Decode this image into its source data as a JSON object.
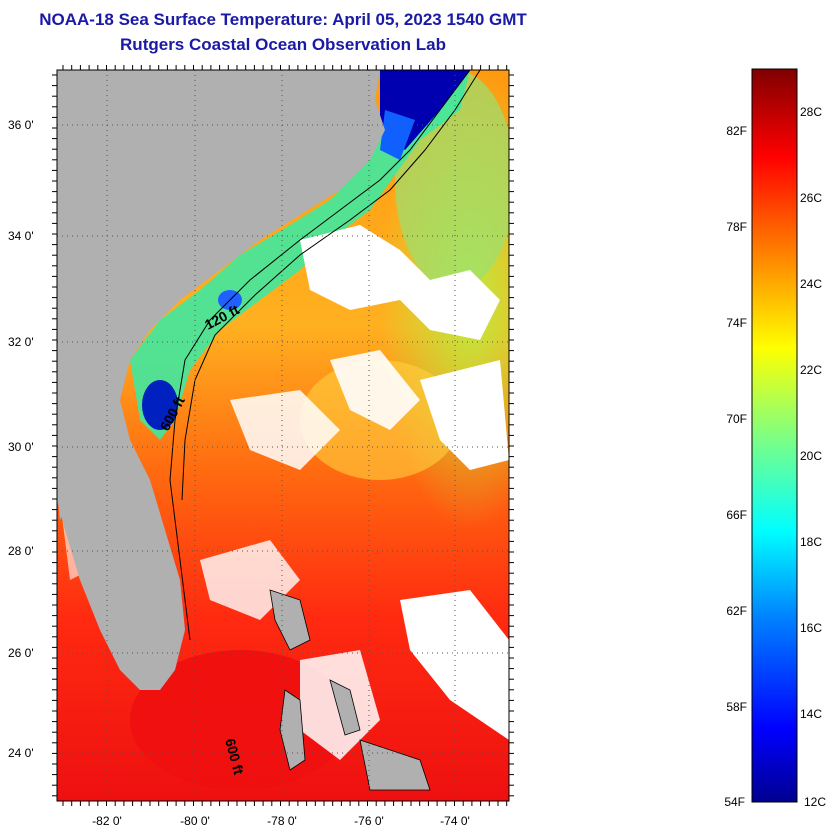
{
  "title_line1": "NOAA-18 Sea Surface Temperature:  April 05, 2023 1540 GMT",
  "title_line2": "Rutgers Coastal Ocean Observation Lab",
  "lat_labels": [
    "36 0'",
    "34 0'",
    "32 0'",
    "30 0'",
    "28 0'",
    "26 0'",
    "24 0'"
  ],
  "lon_labels": [
    "-82 0'",
    "-80 0'",
    "-78 0'",
    "-76 0'",
    "-74 0'"
  ],
  "contours": {
    "shelf": "120 ft",
    "slope": "600 ft",
    "bahamas": "600 ft"
  },
  "colorbar": {
    "fahrenheit": [
      "82F",
      "78F",
      "74F",
      "70F",
      "66F",
      "62F",
      "58F",
      "54F"
    ],
    "celsius": [
      "28C",
      "26C",
      "24C",
      "22C",
      "20C",
      "18C",
      "16C",
      "14C",
      "12C"
    ],
    "gradient_stops": [
      "#00008f",
      "#0000ff",
      "#0080ff",
      "#00ffff",
      "#80ff80",
      "#ffff00",
      "#ff8000",
      "#ff0000",
      "#800000"
    ]
  },
  "colors": {
    "title": "#1a1aa6",
    "land": "#b0b0b0",
    "cloud": "#ffffff"
  }
}
